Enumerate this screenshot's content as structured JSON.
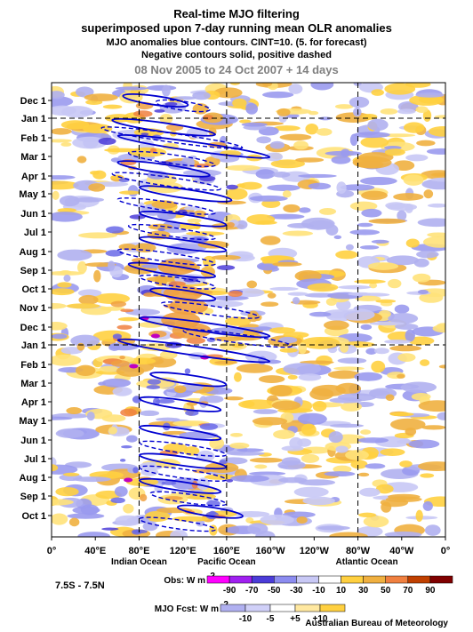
{
  "chart_data": {
    "type": "heatmap",
    "title": "Real-time MJO filtering",
    "subtitle": "superimposed upon 7-day running mean OLR anomalies",
    "notes": [
      "MJO anomalies blue contours. CINT=10. (5. for forecast)",
      "Negative contours solid, positive dashed"
    ],
    "date_range": "08 Nov 2005 to 24 Oct 2007 + 14 days",
    "latitude_band": "7.5S - 7.5N",
    "y_tick_labels": [
      "Dec 1",
      "Jan 1",
      "Feb 1",
      "Mar 1",
      "Apr 1",
      "May 1",
      "Jun 1",
      "Jul 1",
      "Aug 1",
      "Sep 1",
      "Oct 1",
      "Nov 1",
      "Dec 1",
      "Jan 1",
      "Feb 1",
      "Mar 1",
      "Apr 1",
      "May 1",
      "Jun 1",
      "Jul 1",
      "Aug 1",
      "Sep 1",
      "Oct 1"
    ],
    "x_tick_labels": [
      "0°",
      "40°E",
      "80°E",
      "120°E",
      "160°E",
      "160°W",
      "120°W",
      "80°W",
      "40°W",
      "0°"
    ],
    "regions": [
      "Indian Ocean",
      "Pacific Ocean",
      "Atlantic Ocean"
    ],
    "obs_legend_title": "Obs: W m",
    "obs_levels": [
      "-90",
      "-70",
      "-50",
      "-30",
      "-10",
      "10",
      "30",
      "50",
      "70",
      "90"
    ],
    "obs_colors": [
      "#ff00ff",
      "#a020f0",
      "#4b3cd8",
      "#8c8cf0",
      "#c8c8f5",
      "#ffffff",
      "#ffd040",
      "#f0b040",
      "#f08040",
      "#c04000",
      "#800000"
    ],
    "fcst_legend_title": "MJO Fcst: W m",
    "fcst_levels": [
      "-10",
      "-5",
      "+5",
      "+10"
    ],
    "fcst_colors": [
      "#b0b0f0",
      "#d0d0f8",
      "#ffffff",
      "#ffe8a0",
      "#ffd040"
    ],
    "contour_color": "#0000d0",
    "year_boundaries": [
      "Jan 1",
      "Jan 1"
    ],
    "marked_longitudes": [
      "80°E",
      "160°E",
      "80°W"
    ],
    "mjo_events": [
      {
        "lon_start": 65,
        "lon_end": 125,
        "date": "Dec 1",
        "sign": "negative"
      },
      {
        "lon_start": 95,
        "lon_end": 145,
        "date": "Dec 10",
        "sign": "positive"
      },
      {
        "lon_start": 55,
        "lon_end": 150,
        "date": "Jan 15",
        "sign": "negative"
      },
      {
        "lon_start": 45,
        "lon_end": 175,
        "date": "Feb 1",
        "sign": "positive"
      },
      {
        "lon_start": 60,
        "lon_end": 200,
        "date": "Feb 15",
        "sign": "negative"
      },
      {
        "lon_start": 70,
        "lon_end": 150,
        "date": "Mar 5",
        "sign": "positive"
      },
      {
        "lon_start": 60,
        "lon_end": 145,
        "date": "Mar 20",
        "sign": "negative"
      },
      {
        "lon_start": 55,
        "lon_end": 155,
        "date": "Apr 10",
        "sign": "positive"
      },
      {
        "lon_start": 80,
        "lon_end": 165,
        "date": "May 1",
        "sign": "negative"
      },
      {
        "lon_start": 60,
        "lon_end": 150,
        "date": "May 20",
        "sign": "positive"
      },
      {
        "lon_start": 80,
        "lon_end": 160,
        "date": "Jun 10",
        "sign": "negative"
      },
      {
        "lon_start": 70,
        "lon_end": 150,
        "date": "Jul 1",
        "sign": "positive"
      },
      {
        "lon_start": 80,
        "lon_end": 160,
        "date": "Jul 20",
        "sign": "negative"
      },
      {
        "lon_start": 60,
        "lon_end": 150,
        "date": "Aug 10",
        "sign": "positive"
      },
      {
        "lon_start": 70,
        "lon_end": 150,
        "date": "Sep 1",
        "sign": "negative"
      },
      {
        "lon_start": 80,
        "lon_end": 150,
        "date": "Sep 20",
        "sign": "positive"
      },
      {
        "lon_start": 90,
        "lon_end": 150,
        "date": "Oct 10",
        "sign": "negative"
      },
      {
        "lon_start": 100,
        "lon_end": 190,
        "date": "Nov 5",
        "sign": "positive"
      },
      {
        "lon_start": 80,
        "lon_end": 200,
        "date": "Dec 1",
        "sign": "negative"
      },
      {
        "lon_start": 120,
        "lon_end": 220,
        "date": "Dec 20",
        "sign": "positive"
      },
      {
        "lon_start": 60,
        "lon_end": 200,
        "date": "Jan 10",
        "sign": "negative"
      },
      {
        "lon_start": 90,
        "lon_end": 160,
        "date": "Feb 25",
        "sign": "negative"
      },
      {
        "lon_start": 80,
        "lon_end": 155,
        "date": "Apr 5",
        "sign": "negative"
      },
      {
        "lon_start": 80,
        "lon_end": 155,
        "date": "May 20",
        "sign": "negative"
      },
      {
        "lon_start": 80,
        "lon_end": 160,
        "date": "Jun 15",
        "sign": "positive"
      },
      {
        "lon_start": 80,
        "lon_end": 160,
        "date": "Jul 5",
        "sign": "negative"
      },
      {
        "lon_start": 80,
        "lon_end": 160,
        "date": "Jul 25",
        "sign": "positive"
      },
      {
        "lon_start": 80,
        "lon_end": 155,
        "date": "Aug 15",
        "sign": "negative"
      },
      {
        "lon_start": 90,
        "lon_end": 160,
        "date": "Sep 5",
        "sign": "positive"
      },
      {
        "lon_start": 115,
        "lon_end": 175,
        "date": "Sep 25",
        "sign": "negative"
      },
      {
        "lon_start": 80,
        "lon_end": 150,
        "date": "Oct 15",
        "sign": "positive"
      }
    ]
  },
  "footer": {
    "credit": "Australian Bureau of Meteorology"
  }
}
